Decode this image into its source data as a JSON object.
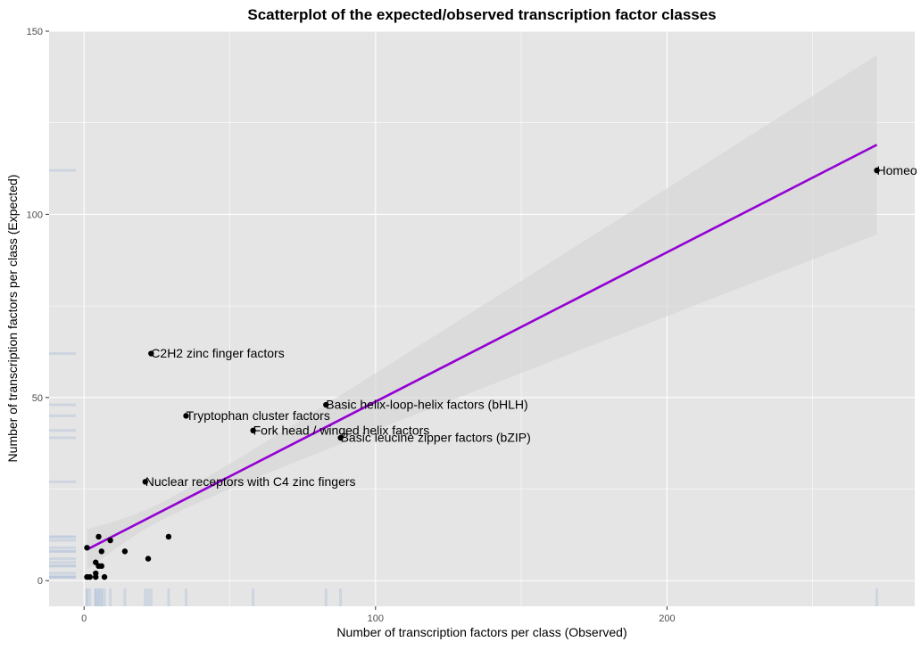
{
  "chart_data": {
    "type": "scatter",
    "title": "Scatterplot of the expected/observed transcription factor classes",
    "xlabel": "Number of transcription factors per class (Observed)",
    "ylabel": "Number of transcription factors per class (Expected)",
    "xlim": [
      -12,
      285
    ],
    "ylim": [
      -7,
      150
    ],
    "xticks": [
      0,
      100,
      200
    ],
    "yticks": [
      0,
      50,
      100,
      150
    ],
    "grid": true,
    "legend": "none",
    "colors": {
      "panel": "#e5e5e5",
      "grid": "#ffffff",
      "points": "#000000",
      "fit_line": "#9400d3",
      "confidence_band": "#d4d4d4",
      "rug": "#b9c8dc"
    },
    "fit_line": {
      "x": [
        1,
        272
      ],
      "y": [
        8.5,
        119
      ]
    },
    "confidence_band": {
      "x": [
        1,
        272
      ],
      "lower": [
        3.5,
        94.5
      ],
      "upper": [
        14.5,
        143.5
      ]
    },
    "points": [
      {
        "x": 272,
        "y": 112,
        "label": "Homeo"
      },
      {
        "x": 23,
        "y": 62,
        "label": "C2H2 zinc finger factors"
      },
      {
        "x": 83,
        "y": 48,
        "label": "Basic helix-loop-helix factors (bHLH)"
      },
      {
        "x": 35,
        "y": 45,
        "label": "Tryptophan cluster factors"
      },
      {
        "x": 58,
        "y": 41,
        "label": "Fork head / winged helix factors"
      },
      {
        "x": 88,
        "y": 39,
        "label": "Basic leucine zipper factors (bZIP)"
      },
      {
        "x": 21,
        "y": 27,
        "label": "Nuclear receptors with C4 zinc fingers"
      },
      {
        "x": 29,
        "y": 12,
        "label": ""
      },
      {
        "x": 5,
        "y": 12,
        "label": ""
      },
      {
        "x": 9,
        "y": 11,
        "label": ""
      },
      {
        "x": 1,
        "y": 9,
        "label": ""
      },
      {
        "x": 14,
        "y": 8,
        "label": ""
      },
      {
        "x": 6,
        "y": 8,
        "label": ""
      },
      {
        "x": 22,
        "y": 6,
        "label": ""
      },
      {
        "x": 4,
        "y": 5,
        "label": ""
      },
      {
        "x": 6,
        "y": 4,
        "label": ""
      },
      {
        "x": 5,
        "y": 4,
        "label": ""
      },
      {
        "x": 4,
        "y": 2,
        "label": ""
      },
      {
        "x": 1,
        "y": 1,
        "label": ""
      },
      {
        "x": 2,
        "y": 1,
        "label": ""
      },
      {
        "x": 4,
        "y": 1,
        "label": ""
      },
      {
        "x": 7,
        "y": 1,
        "label": ""
      }
    ]
  }
}
